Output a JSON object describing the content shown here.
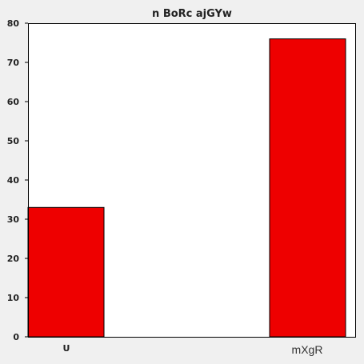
{
  "chart_data": {
    "type": "bar",
    "title": "n BoRc ajGYw",
    "categories": [
      "U",
      "mXgR"
    ],
    "values": [
      33,
      76
    ],
    "xlabel": "",
    "ylabel": "",
    "ylim": [
      0,
      80
    ],
    "yticks": [
      0,
      10,
      20,
      30,
      40,
      50,
      60,
      70,
      80
    ],
    "grid": false,
    "legend": "none",
    "bar_color": "#ee0000",
    "bar_edge_color": "#000000",
    "plot_background": "#ffffff",
    "figure_background": "#f0f0f0"
  }
}
